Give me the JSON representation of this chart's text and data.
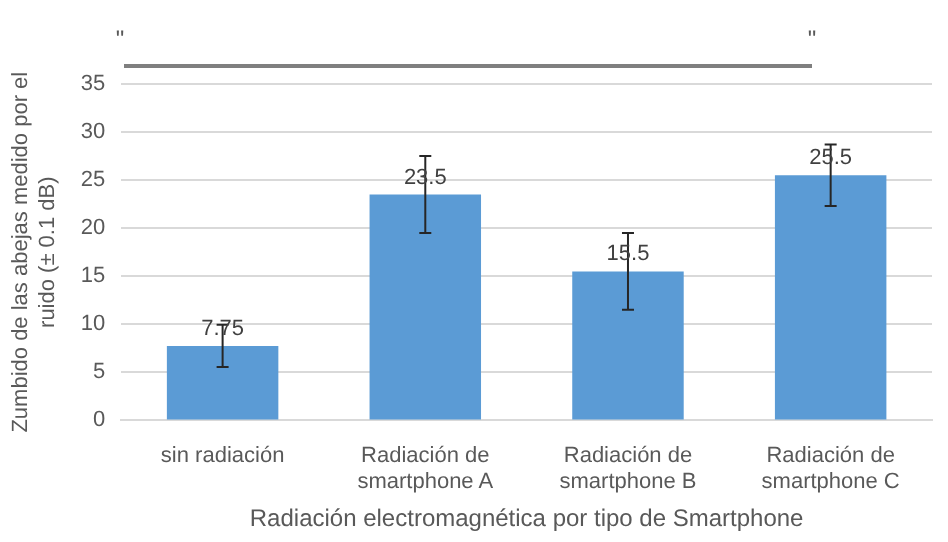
{
  "chart_data": {
    "type": "bar",
    "annotations": [
      "\"",
      "\""
    ],
    "categories": [
      "sin radiación",
      "Radiación de\nsmartphone A",
      "Radiación de\nsmartphone B",
      "Radiación de\nsmartphone C"
    ],
    "values": [
      7.75,
      23.5,
      15.5,
      25.5
    ],
    "errors": [
      2.2,
      4,
      4,
      3.2
    ],
    "color": "#5b9bd5",
    "xlabel": "Radiación electromagnética por tipo de Smartphone",
    "ylabel": "Zumbido de las abejas medido por el\nruido (± 0.1 dB)",
    "ylim": [
      0,
      35
    ],
    "yticks": [
      0,
      5,
      10,
      15,
      20,
      25,
      30,
      35
    ],
    "grid": "y",
    "data_labels": true
  }
}
